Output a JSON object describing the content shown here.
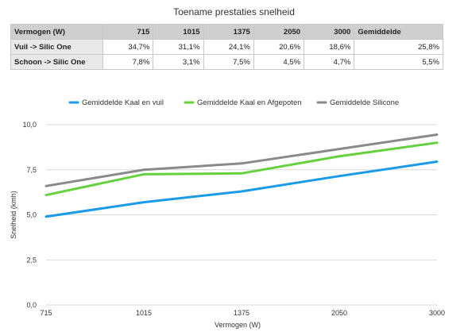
{
  "table": {
    "title": "Toename prestaties snelheid",
    "headers": [
      "Vermogen (W)",
      "715",
      "1015",
      "1375",
      "2050",
      "3000",
      "Gemiddelde"
    ],
    "rows": [
      {
        "label": "Vuil -> Silic One",
        "values": [
          "34,7%",
          "31,1%",
          "24,1%",
          "20,6%",
          "18,6%",
          "25,8%"
        ]
      },
      {
        "label": "Schoon -> Silic One",
        "values": [
          "7,8%",
          "3,1%",
          "7,5%",
          "4,5%",
          "4,7%",
          "5,5%"
        ]
      }
    ]
  },
  "chart_data": {
    "type": "line",
    "categories": [
      "715",
      "1015",
      "1375",
      "2050",
      "3000"
    ],
    "xlabel": "Vermogen (W)",
    "ylabel": "Snelheid (kmh)",
    "ylim": [
      0,
      10
    ],
    "yticks": [
      "0,0",
      "2,5",
      "5,0",
      "7,5",
      "10,0"
    ],
    "grid": true,
    "legend_position": "top",
    "series": [
      {
        "name": "Gemiddelde Kaal en vuil",
        "color": "#1a9bea",
        "values": [
          4.9,
          5.7,
          6.3,
          7.15,
          7.95
        ]
      },
      {
        "name": "Gemiddelde Kaal en Afgepoten",
        "color": "#66d13e",
        "values": [
          6.1,
          7.25,
          7.3,
          8.25,
          9.0
        ]
      },
      {
        "name": "Gemiddelde Silicone",
        "color": "#8a8a8a",
        "values": [
          6.6,
          7.5,
          7.85,
          8.65,
          9.45
        ]
      }
    ]
  }
}
